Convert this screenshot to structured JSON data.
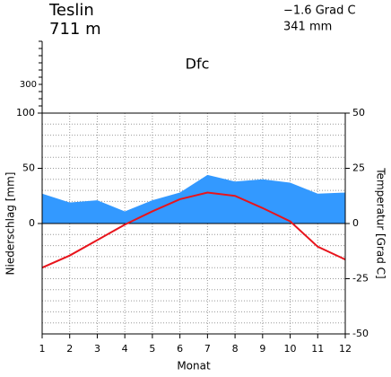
{
  "chart_data": {
    "type": "climate",
    "station": "Teslin",
    "elevation": "711 m",
    "mean_temperature": "−1.6 Grad C",
    "annual_precipitation": "341 mm",
    "climate_class": "Dfc",
    "ylabel": "Niederschlag [mm]",
    "y2label": "Temperatur [Grad C]",
    "xlabel": "Monat",
    "categories": [
      1,
      2,
      3,
      4,
      5,
      6,
      7,
      8,
      9,
      10,
      11,
      12
    ],
    "series": [
      {
        "name": "Niederschlag",
        "color": "#3399ff",
        "axis": "y",
        "values": [
          27,
          19,
          21,
          11,
          21,
          28,
          44,
          38,
          40,
          37,
          27,
          28
        ]
      },
      {
        "name": "Temperatur",
        "color": "#e8141c",
        "axis": "y2",
        "values": [
          -20,
          -14.5,
          -7.5,
          -0.5,
          5.5,
          11,
          14,
          12.5,
          7,
          1,
          -10.5,
          -16.3
        ]
      }
    ],
    "ylim": [
      -100,
      100
    ],
    "yticks": [
      0,
      50,
      100
    ],
    "y2lim": [
      -50,
      50
    ],
    "y2ticks": [
      -50,
      -25,
      0,
      25,
      50
    ],
    "grid": true,
    "grid_y2": [
      -45,
      -40,
      -35,
      -30,
      -25,
      -20,
      -15,
      -10,
      -5,
      0,
      5,
      10,
      15,
      20,
      25,
      30,
      35,
      40,
      45
    ],
    "upper_ylim": [
      100,
      600
    ],
    "upper_yticks": [
      300
    ],
    "upper_minor_yticks": [
      150,
      200,
      250,
      300,
      350,
      400,
      450,
      500,
      550,
      600
    ]
  }
}
